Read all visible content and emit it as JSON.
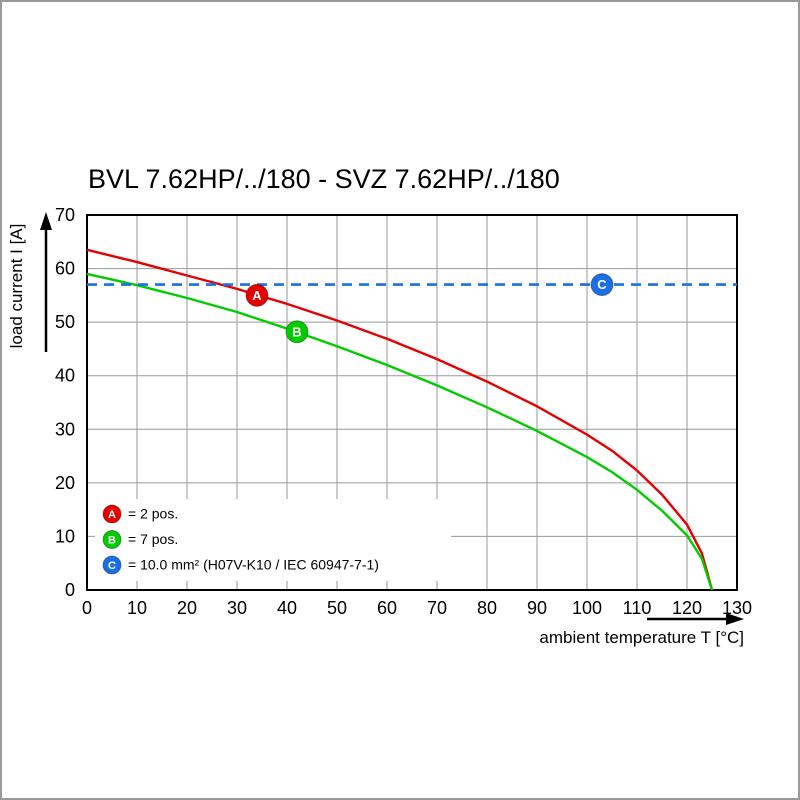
{
  "page": {
    "title": "BVL 7.62HP/../180 - SVZ 7.62HP/../180"
  },
  "chart_data": {
    "type": "line",
    "title": "BVL 7.62HP/../180 - SVZ 7.62HP/../180",
    "xlabel": "ambient temperature T [°C]",
    "ylabel": "load current I [A]",
    "xlim": [
      0,
      130
    ],
    "ylim": [
      0,
      70
    ],
    "xticks": [
      0,
      10,
      20,
      30,
      40,
      50,
      60,
      70,
      80,
      90,
      100,
      110,
      120,
      130
    ],
    "yticks": [
      0,
      10,
      20,
      30,
      40,
      50,
      60,
      70
    ],
    "grid": true,
    "legend_position": "lower-left",
    "series": [
      {
        "name": "A",
        "legend_label": "= 2 pos.",
        "color": "#e60000",
        "style": "solid",
        "marker_at": [
          34,
          55
        ],
        "points": [
          [
            0,
            63.5
          ],
          [
            10,
            61.2
          ],
          [
            20,
            58.7
          ],
          [
            30,
            56.2
          ],
          [
            40,
            53.4
          ],
          [
            50,
            50.3
          ],
          [
            60,
            46.9
          ],
          [
            70,
            43.1
          ],
          [
            80,
            38.9
          ],
          [
            90,
            34.3
          ],
          [
            100,
            29.0
          ],
          [
            105,
            26.0
          ],
          [
            110,
            22.3
          ],
          [
            115,
            17.8
          ],
          [
            120,
            12.2
          ],
          [
            123,
            6.8
          ],
          [
            125,
            0
          ]
        ]
      },
      {
        "name": "B",
        "legend_label": "= 7 pos.",
        "color": "#00cc00",
        "style": "solid",
        "marker_at": [
          42,
          48.2
        ],
        "points": [
          [
            0,
            59.0
          ],
          [
            10,
            56.9
          ],
          [
            20,
            54.5
          ],
          [
            30,
            51.9
          ],
          [
            40,
            48.8
          ],
          [
            50,
            45.5
          ],
          [
            60,
            42.0
          ],
          [
            70,
            38.2
          ],
          [
            80,
            34.1
          ],
          [
            90,
            29.7
          ],
          [
            100,
            24.8
          ],
          [
            105,
            22.0
          ],
          [
            110,
            18.7
          ],
          [
            115,
            14.8
          ],
          [
            120,
            10.2
          ],
          [
            123,
            5.8
          ],
          [
            125,
            0
          ]
        ]
      },
      {
        "name": "C",
        "legend_label": "= 10.0 mm² (H07V-K10 / IEC 60947-7-1)",
        "color": "#1a6ee6",
        "style": "dashed",
        "marker_at": [
          103,
          57
        ],
        "points": [
          [
            0,
            57
          ],
          [
            130,
            57
          ]
        ]
      }
    ]
  }
}
